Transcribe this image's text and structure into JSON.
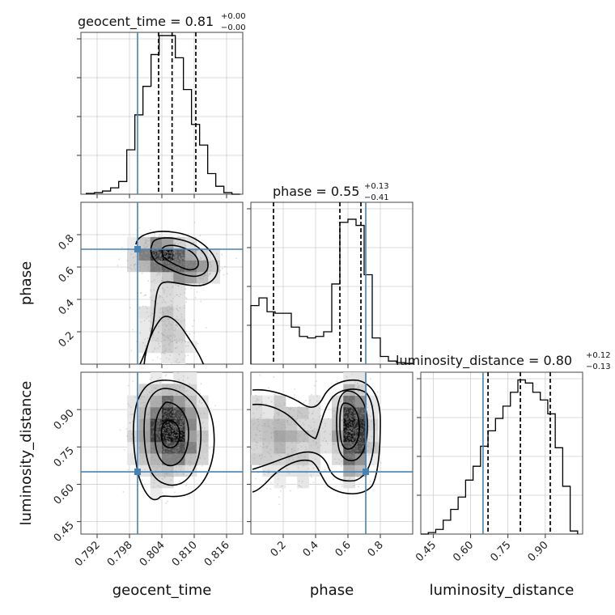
{
  "chart_data": {
    "type": "corner",
    "parameters": [
      "geocent_time",
      "phase",
      "luminosity_distance"
    ],
    "truth": {
      "geocent_time": 0.7995,
      "phase": 0.71,
      "luminosity_distance": 0.65
    },
    "titles": [
      {
        "param": "geocent_time",
        "label": "geocent_time",
        "median": "0.81",
        "plus": "+0.00",
        "minus": "−0.00"
      },
      {
        "param": "phase",
        "label": "phase",
        "median": "0.55",
        "plus": "+0.13",
        "minus": "−0.41"
      },
      {
        "param": "luminosity_distance",
        "label": "luminosity_distance",
        "median": "0.80",
        "plus": "+0.12",
        "minus": "−0.13"
      }
    ],
    "axes": {
      "geocent_time": {
        "range": [
          0.789,
          0.819
        ],
        "ticks": [
          "0.792",
          "0.798",
          "0.804",
          "0.810",
          "0.816"
        ],
        "tick_values": [
          0.792,
          0.798,
          0.804,
          0.81,
          0.816
        ]
      },
      "phase": {
        "range": [
          0.0,
          1.0
        ],
        "ticks": [
          "0.2",
          "0.4",
          "0.6",
          "0.8"
        ],
        "tick_values": [
          0.2,
          0.4,
          0.6,
          0.8
        ]
      },
      "luminosity_distance": {
        "range": [
          0.4,
          1.05
        ],
        "ticks": [
          "0.45",
          "0.60",
          "0.75",
          "0.90"
        ],
        "tick_values": [
          0.45,
          0.6,
          0.75,
          0.9
        ]
      }
    },
    "ylabels": {
      "phase": "phase",
      "luminosity_distance": "luminosity_distance"
    },
    "quantiles": {
      "geocent_time": [
        0.8034,
        0.8059,
        0.8103
      ],
      "phase": [
        0.14,
        0.55,
        0.68
      ],
      "luminosity_distance": [
        0.67,
        0.8,
        0.92
      ]
    },
    "histograms": {
      "geocent_time": {
        "edges": [
          0.79,
          0.7915,
          0.793,
          0.7945,
          0.796,
          0.7975,
          0.799,
          0.8005,
          0.802,
          0.8035,
          0.805,
          0.8065,
          0.808,
          0.8095,
          0.811,
          0.8125,
          0.814,
          0.8155,
          0.817,
          0.8185
        ],
        "counts": [
          0.005,
          0.01,
          0.02,
          0.04,
          0.08,
          0.28,
          0.5,
          0.68,
          0.88,
          1.0,
          1.0,
          0.86,
          0.66,
          0.44,
          0.31,
          0.13,
          0.05,
          0.01,
          0.0
        ]
      },
      "phase": {
        "edges": [
          0.0,
          0.05,
          0.1,
          0.15,
          0.2,
          0.25,
          0.3,
          0.35,
          0.4,
          0.45,
          0.5,
          0.55,
          0.6,
          0.65,
          0.7,
          0.75,
          0.8,
          0.85,
          0.9,
          0.95,
          1.0
        ],
        "counts": [
          0.38,
          0.43,
          0.34,
          0.33,
          0.33,
          0.24,
          0.18,
          0.17,
          0.18,
          0.21,
          0.52,
          0.92,
          0.94,
          0.9,
          0.58,
          0.17,
          0.05,
          0.02,
          0.01,
          0.005
        ],
        "ymax": 1.05
      },
      "luminosity_distance": {
        "edges": [
          0.4,
          0.43,
          0.46,
          0.49,
          0.52,
          0.55,
          0.58,
          0.61,
          0.64,
          0.67,
          0.7,
          0.73,
          0.76,
          0.79,
          0.82,
          0.85,
          0.88,
          0.91,
          0.94,
          0.97,
          1.0,
          1.03
        ],
        "counts": [
          0.0,
          0.01,
          0.03,
          0.09,
          0.16,
          0.24,
          0.35,
          0.44,
          0.57,
          0.67,
          0.75,
          0.83,
          0.92,
          1.0,
          0.98,
          0.92,
          0.87,
          0.78,
          0.56,
          0.31,
          0.02
        ],
        "ymax": 1.05
      }
    },
    "scatter": {
      "phase_vs_geocent": [
        {
          "x": 0.8035,
          "y": 0.68,
          "sx": 0.0025,
          "sy": 0.05,
          "w": 0.35
        },
        {
          "x": 0.8065,
          "y": 0.64,
          "sx": 0.003,
          "sy": 0.06,
          "w": 0.25
        },
        {
          "x": 0.8095,
          "y": 0.58,
          "sx": 0.0025,
          "sy": 0.05,
          "w": 0.15
        },
        {
          "x": 0.8045,
          "y": 0.35,
          "sx": 0.0025,
          "sy": 0.12,
          "w": 0.15
        },
        {
          "x": 0.8055,
          "y": 0.12,
          "sx": 0.0028,
          "sy": 0.08,
          "w": 0.1
        }
      ],
      "distance_vs_geocent": [
        {
          "x": 0.8055,
          "y": 0.82,
          "sx": 0.003,
          "sy": 0.09,
          "w": 1.0
        }
      ],
      "distance_vs_phase": [
        {
          "x": 0.64,
          "y": 0.83,
          "sx": 0.05,
          "sy": 0.09,
          "w": 0.6
        },
        {
          "x": 0.2,
          "y": 0.79,
          "sx": 0.18,
          "sy": 0.09,
          "w": 0.4
        }
      ]
    }
  }
}
